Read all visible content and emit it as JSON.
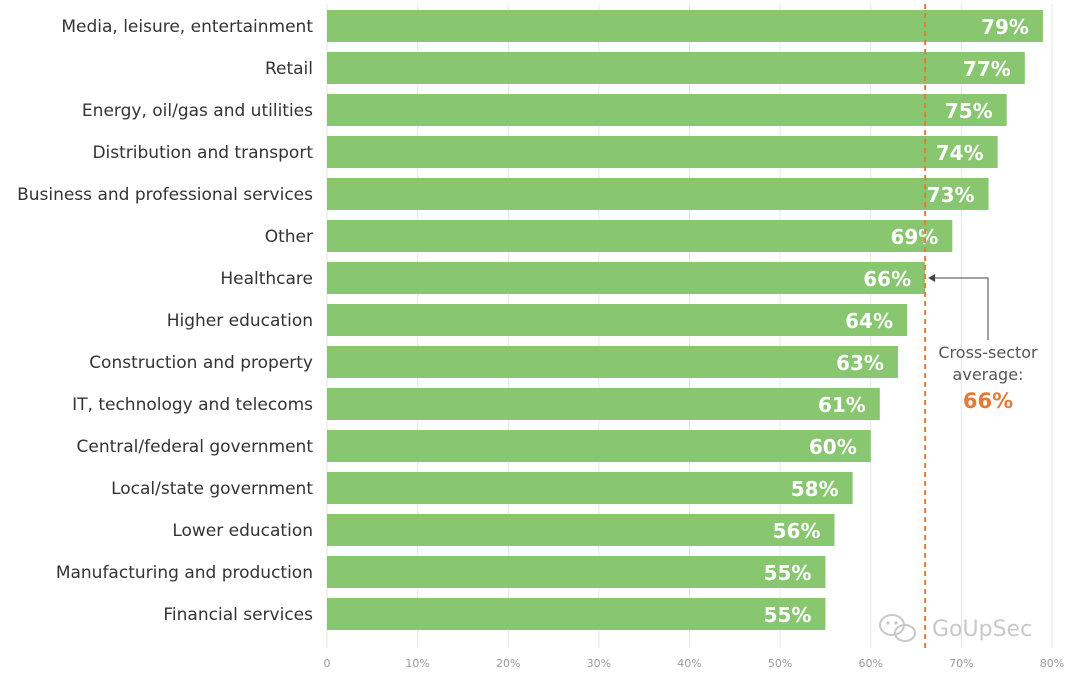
{
  "chart_data": {
    "type": "bar",
    "orientation": "horizontal",
    "categories": [
      "Media, leisure, entertainment",
      "Retail",
      "Energy, oil/gas and utilities",
      "Distribution and transport",
      "Business and professional services",
      "Other",
      "Healthcare",
      "Higher education",
      "Construction and property",
      "IT, technology and telecoms",
      "Central/federal government",
      "Local/state government",
      "Lower education",
      "Manufacturing and production",
      "Financial services"
    ],
    "values": [
      79,
      77,
      75,
      74,
      73,
      69,
      66,
      64,
      63,
      61,
      60,
      58,
      56,
      55,
      55
    ],
    "value_labels": [
      "79%",
      "77%",
      "75%",
      "74%",
      "73%",
      "69%",
      "66%",
      "64%",
      "63%",
      "61%",
      "60%",
      "58%",
      "56%",
      "55%",
      "55%"
    ],
    "xlim": [
      0,
      80
    ],
    "x_ticks": [
      0,
      10,
      20,
      30,
      40,
      50,
      60,
      70,
      80
    ],
    "x_tick_labels": [
      "0",
      "10%",
      "20%",
      "30%",
      "40%",
      "50%",
      "60%",
      "70%",
      "80%"
    ],
    "grid": true,
    "bar_color": "#88c670",
    "reference_line": {
      "value": 66,
      "label_lines": [
        "Cross-sector",
        "average:"
      ],
      "value_label": "66%",
      "color": "#e07b39"
    }
  },
  "watermark": {
    "text": "GoUpSec",
    "icon": "wechat-icon"
  }
}
